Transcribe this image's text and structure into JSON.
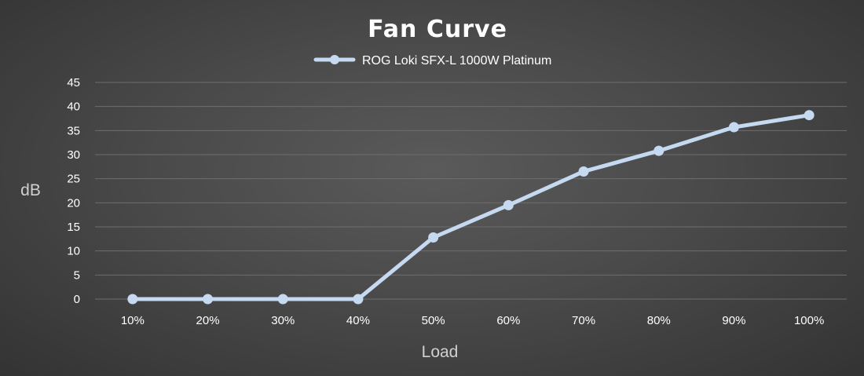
{
  "chart_data": {
    "type": "line",
    "title": "Fan Curve",
    "xlabel": "Load",
    "ylabel": "dB",
    "categories": [
      "10%",
      "20%",
      "30%",
      "40%",
      "50%",
      "60%",
      "70%",
      "80%",
      "90%",
      "100%"
    ],
    "series": [
      {
        "name": "ROG Loki SFX-L 1000W Platinum",
        "values": [
          0,
          0,
          0,
          0,
          12.8,
          19.5,
          26.5,
          30.8,
          35.7,
          38.2
        ]
      }
    ],
    "ylim": [
      0,
      45
    ],
    "yticks": [
      0,
      5,
      10,
      15,
      20,
      25,
      30,
      35,
      40,
      45
    ],
    "grid": true,
    "legend": "top-center",
    "colors": {
      "series": "#c5d9f1",
      "grid": "#6e6e6e",
      "text": "#ffffff"
    }
  }
}
